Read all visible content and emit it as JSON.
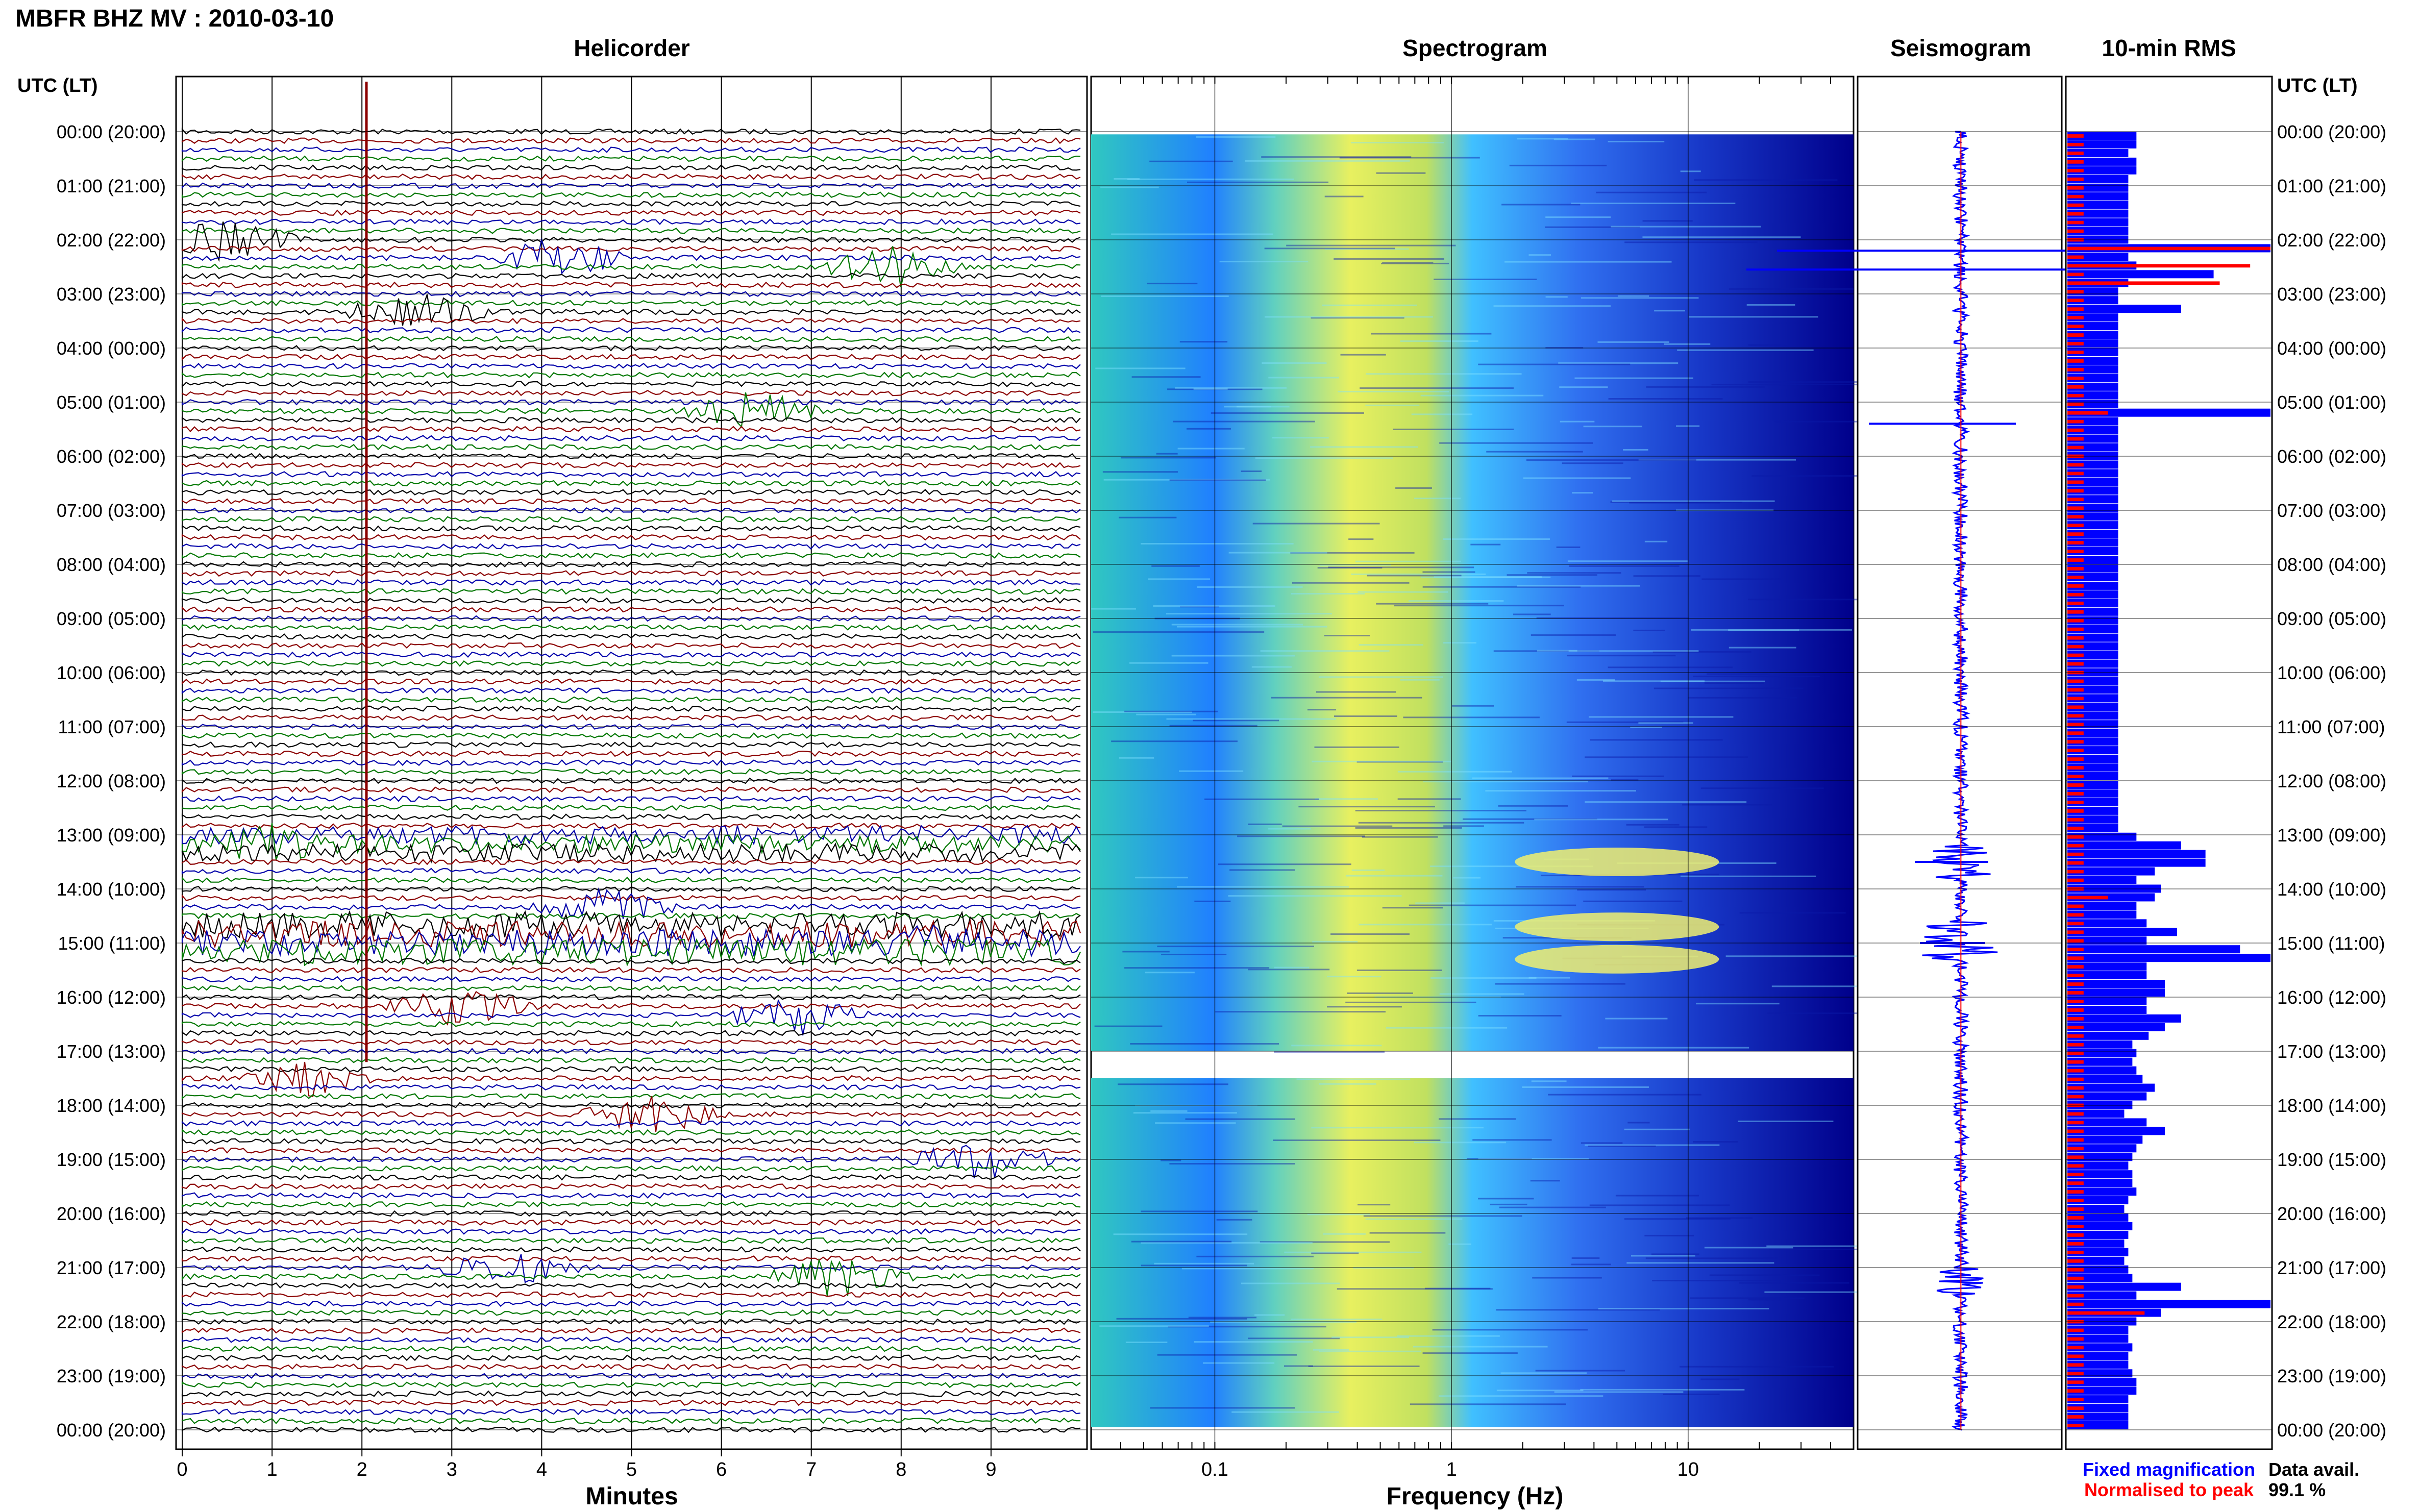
{
  "title": "MBFR BHZ MV : 2010-03-10",
  "panels": {
    "helicorder": "Helicorder",
    "spectrogram": "Spectrogram",
    "seismogram": "Seismogram",
    "rms": "10-min RMS"
  },
  "time_axis_label": "UTC (LT)",
  "time_labels": [
    "00:00 (20:00)",
    "01:00 (21:00)",
    "02:00 (22:00)",
    "03:00 (23:00)",
    "04:00 (00:00)",
    "05:00 (01:00)",
    "06:00 (02:00)",
    "07:00 (03:00)",
    "08:00 (04:00)",
    "09:00 (05:00)",
    "10:00 (06:00)",
    "11:00 (07:00)",
    "12:00 (08:00)",
    "13:00 (09:00)",
    "14:00 (10:00)",
    "15:00 (11:00)",
    "16:00 (12:00)",
    "17:00 (13:00)",
    "18:00 (14:00)",
    "19:00 (15:00)",
    "20:00 (16:00)",
    "21:00 (17:00)",
    "22:00 (18:00)",
    "23:00 (19:00)",
    "00:00 (20:00)"
  ],
  "minutes_axis": {
    "label": "Minutes",
    "ticks": [
      "0",
      "1",
      "2",
      "3",
      "4",
      "5",
      "6",
      "7",
      "8",
      "9"
    ]
  },
  "frequency_axis": {
    "label": "Frequency (Hz)",
    "ticks": [
      "0.1",
      "1",
      "10"
    ],
    "scale": "log",
    "range": [
      0.03,
      50
    ]
  },
  "legend": {
    "fixed": "Fixed magnification",
    "normalised": "Normalised to peak",
    "fixed_color": "#0000ff",
    "normalised_color": "#ff0000"
  },
  "data_avail": {
    "label": "Data avail.",
    "value": "99.1 %"
  },
  "colors": {
    "trace_cycle": [
      "#000000",
      "#8b0000",
      "#0000aa",
      "#007700"
    ],
    "rms_fixed": "#0000ff",
    "rms_normalised": "#ff0000",
    "spectrogram_low": "#00008b",
    "spectrogram_high": "#ffff40"
  },
  "chart_data": [
    {
      "type": "line",
      "name": "helicorder",
      "x_unit": "minutes",
      "xlim": [
        0,
        10
      ],
      "hours": 24,
      "rows_per_hour": 6,
      "notable_events_hour": [
        2.1,
        2.4,
        2.6,
        3.4,
        5.2,
        13.2,
        14.4,
        15.0,
        16.2,
        16.4,
        17.5,
        18.3,
        19.1,
        21.1,
        21.3
      ]
    },
    {
      "type": "heatmap",
      "name": "spectrogram",
      "x_unit": "Hz",
      "xscale": "log",
      "xlim": [
        0.03,
        50
      ],
      "energy_peak_hz": [
        0.3,
        0.5
      ],
      "data_gap_hour": [
        17.0,
        17.5
      ],
      "tremor_hours": [
        13.5,
        14.7,
        15.3
      ]
    },
    {
      "type": "bar",
      "name": "10-min RMS",
      "hours_step": 0.1667,
      "fixed_magnification": [
        0.34,
        0.34,
        0.3,
        0.34,
        0.34,
        0.3,
        0.3,
        0.3,
        0.3,
        0.3,
        0.3,
        0.3,
        0.3,
        1.0,
        0.3,
        0.34,
        0.72,
        0.3,
        0.25,
        0.25,
        0.56,
        0.25,
        0.25,
        0.25,
        0.25,
        0.25,
        0.25,
        0.25,
        0.25,
        0.25,
        0.25,
        0.25,
        1.0,
        0.25,
        0.25,
        0.25,
        0.25,
        0.25,
        0.25,
        0.25,
        0.25,
        0.25,
        0.25,
        0.25,
        0.25,
        0.25,
        0.25,
        0.25,
        0.25,
        0.25,
        0.25,
        0.25,
        0.25,
        0.25,
        0.25,
        0.25,
        0.25,
        0.25,
        0.25,
        0.25,
        0.25,
        0.25,
        0.25,
        0.25,
        0.25,
        0.25,
        0.25,
        0.25,
        0.25,
        0.25,
        0.25,
        0.25,
        0.25,
        0.25,
        0.25,
        0.25,
        0.25,
        0.25,
        0.25,
        0.25,
        0.25,
        0.34,
        0.56,
        0.68,
        0.68,
        0.43,
        0.34,
        0.46,
        0.43,
        0.34,
        0.34,
        0.39,
        0.54,
        0.39,
        0.85,
        1.0,
        0.39,
        0.39,
        0.48,
        0.48,
        0.39,
        0.39,
        0.56,
        0.48,
        0.4,
        0.32,
        0.34,
        0.32,
        0.34,
        0.37,
        0.43,
        0.39,
        0.32,
        0.28,
        0.39,
        0.48,
        0.37,
        0.34,
        0.32,
        0.3,
        0.32,
        0.32,
        0.34,
        0.3,
        0.28,
        0.3,
        0.32,
        0.3,
        0.28,
        0.3,
        0.28,
        0.3,
        0.32,
        0.56,
        0.34,
        1.0,
        0.46,
        0.34,
        0.3,
        0.3,
        0.32,
        0.3,
        0.3,
        0.32,
        0.34,
        0.34,
        0.3,
        0.3,
        0.3,
        0.3
      ],
      "normalised_to_peak": [
        0.08,
        0.08,
        0.08,
        0.08,
        0.08,
        0.08,
        0.08,
        0.08,
        0.08,
        0.08,
        0.08,
        0.08,
        0.08,
        0.08,
        0.08,
        0.08,
        0.08,
        0.08,
        0.08,
        0.08,
        0.08,
        0.08,
        0.08,
        0.08,
        0.08,
        0.08,
        0.08,
        0.08,
        0.08,
        0.08,
        0.08,
        0.08,
        0.22,
        0.08,
        0.08,
        0.08,
        0.08,
        0.08,
        0.08,
        0.08,
        0.08,
        0.08,
        0.08,
        0.08,
        0.08,
        0.08,
        0.08,
        0.08,
        0.08,
        0.08,
        0.08,
        0.08,
        0.08,
        0.08,
        0.08,
        0.08,
        0.08,
        0.08,
        0.08,
        0.08,
        0.08,
        0.08,
        0.08,
        0.08,
        0.08,
        0.08,
        0.08,
        0.08,
        0.08,
        0.08,
        0.08,
        0.08,
        0.08,
        0.08,
        0.08,
        0.08,
        0.08,
        0.08,
        0.08,
        0.08,
        0.08,
        0.08,
        0.08,
        0.08,
        0.08,
        0.08,
        0.08,
        0.08,
        0.08,
        0.08,
        0.08,
        0.08,
        0.08,
        0.08,
        0.08,
        0.08,
        0.08,
        0.08,
        0.08,
        0.08,
        0.08,
        0.08,
        0.08,
        0.08,
        0.08,
        0.08,
        0.08,
        0.08,
        0.08,
        0.08,
        0.08,
        0.08,
        0.08,
        0.08,
        0.08,
        0.08,
        0.08,
        0.08,
        0.08,
        0.08,
        0.08,
        0.08,
        0.08,
        0.08,
        0.08,
        0.08,
        0.08,
        0.08,
        0.08,
        0.08,
        0.08,
        0.08,
        0.08,
        0.08,
        0.08,
        0.08,
        0.08,
        0.08,
        0.08,
        0.08,
        0.08,
        0.08,
        0.08,
        0.08,
        0.08,
        0.08,
        0.08,
        0.08,
        0.08,
        0.08
      ],
      "big_normalised": {
        "13": 1.0,
        "15": 0.9,
        "17": 0.75,
        "32": 0.2,
        "88": 0.2,
        "136": 0.38
      }
    }
  ]
}
